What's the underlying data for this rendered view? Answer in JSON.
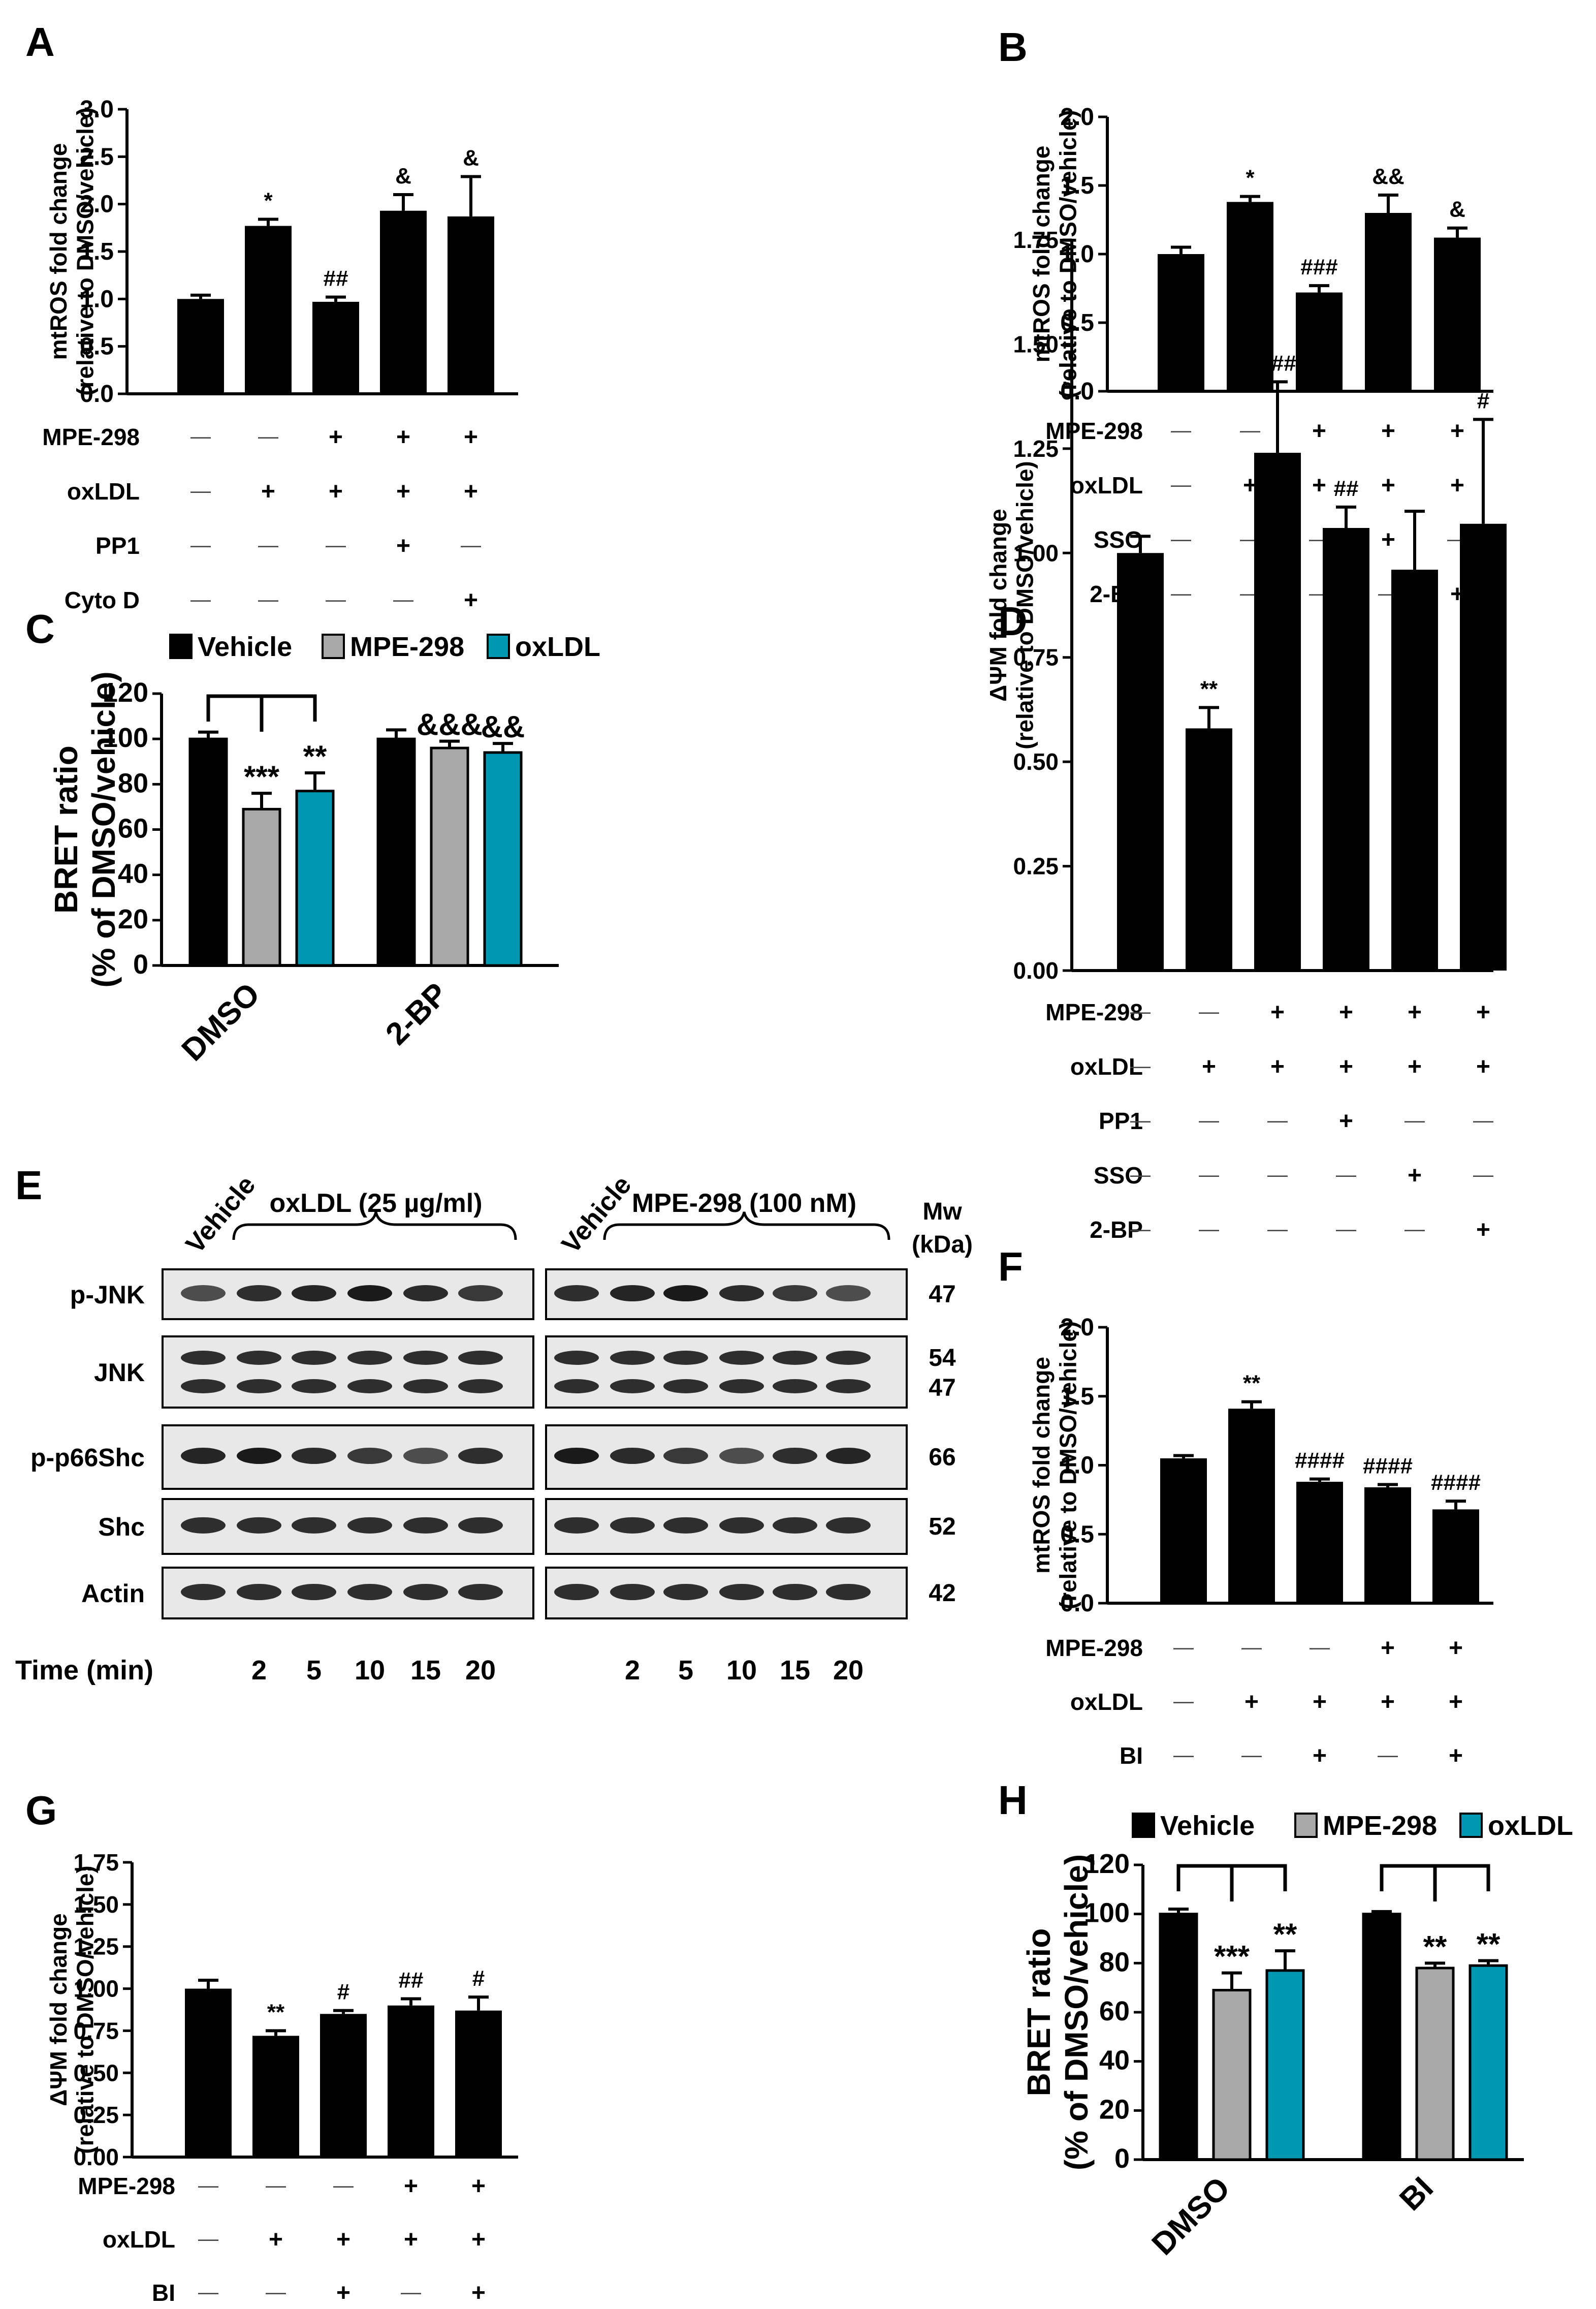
{
  "colors": {
    "bar": "#000000",
    "vehicle": "#000000",
    "mpe": "#a8a8a8",
    "oxldl": "#0097b2",
    "blot_bg": "#e8e8e8",
    "band": "#1a1a1a"
  },
  "panels": {
    "A": {
      "letter": "A"
    },
    "B": {
      "letter": "B"
    },
    "C": {
      "letter": "C"
    },
    "D": {
      "letter": "D"
    },
    "E": {
      "letter": "E"
    },
    "F": {
      "letter": "F"
    },
    "G": {
      "letter": "G"
    },
    "H": {
      "letter": "H"
    }
  },
  "chart_data": [
    {
      "id": "A",
      "type": "bar",
      "ylabel_lines": [
        "mtROS fold change",
        "(relative to DMSO/vehicle)"
      ],
      "ylim": [
        0,
        3.0
      ],
      "yticks": [
        "0.0",
        "0.5",
        "1.0",
        "1.5",
        "2.0",
        "2.5",
        "3.0"
      ],
      "values": [
        1.0,
        1.77,
        0.97,
        1.93,
        1.87
      ],
      "errors": [
        0.04,
        0.07,
        0.05,
        0.17,
        0.42
      ],
      "annotations": [
        "",
        "*",
        "##",
        "&",
        "&"
      ],
      "conditions": [
        {
          "name": "MPE-298",
          "signs": [
            "—",
            "—",
            "+",
            "+",
            "+"
          ]
        },
        {
          "name": "oxLDL",
          "signs": [
            "—",
            "+",
            "+",
            "+",
            "+"
          ]
        },
        {
          "name": "PP1",
          "signs": [
            "—",
            "—",
            "—",
            "+",
            "—"
          ]
        },
        {
          "name": "Cyto D",
          "signs": [
            "—",
            "—",
            "—",
            "—",
            "+"
          ]
        }
      ]
    },
    {
      "id": "B",
      "type": "bar",
      "ylabel_lines": [
        "mtROS fold change",
        "(relative to DMSO/vehicle)"
      ],
      "ylim": [
        0,
        2.0
      ],
      "yticks": [
        "0.0",
        "0.5",
        "1.0",
        "1.5",
        "2.0"
      ],
      "values": [
        1.0,
        1.38,
        0.72,
        1.3,
        1.12
      ],
      "errors": [
        0.05,
        0.04,
        0.05,
        0.13,
        0.07
      ],
      "annotations": [
        "",
        "*",
        "###",
        "&&",
        "&"
      ],
      "conditions": [
        {
          "name": "MPE-298",
          "signs": [
            "—",
            "—",
            "+",
            "+",
            "+"
          ]
        },
        {
          "name": "oxLDL",
          "signs": [
            "—",
            "+",
            "+",
            "+",
            "+"
          ]
        },
        {
          "name": "SSO",
          "signs": [
            "—",
            "—",
            "—",
            "+",
            "—"
          ]
        },
        {
          "name": "2-BP",
          "signs": [
            "—",
            "—",
            "—",
            "—",
            "+"
          ]
        }
      ]
    },
    {
      "id": "C",
      "type": "bar",
      "ylabel_lines": [
        "BRET ratio",
        "(% of DMSO/vehicle)"
      ],
      "ylim": [
        0,
        120
      ],
      "yticks": [
        "0",
        "20",
        "40",
        "60",
        "80",
        "100",
        "120"
      ],
      "legend": [
        "Vehicle",
        "MPE-298",
        "oxLDL"
      ],
      "groups": [
        "DMSO",
        "2-BP"
      ],
      "series": [
        {
          "name": "Vehicle",
          "values": [
            100,
            100
          ],
          "errors": [
            3,
            4
          ]
        },
        {
          "name": "MPE-298",
          "values": [
            69,
            96
          ],
          "errors": [
            7,
            3
          ]
        },
        {
          "name": "oxLDL",
          "values": [
            77,
            94
          ],
          "errors": [
            8,
            4
          ]
        }
      ],
      "annotations": [
        [
          "",
          "***",
          "**"
        ],
        [
          "",
          "&&&",
          "&&"
        ]
      ]
    },
    {
      "id": "D",
      "type": "bar",
      "ylabel_lines": [
        "ΔΨM fold change",
        "(relative to DMSO/vehicle)"
      ],
      "ylim": [
        0,
        1.75
      ],
      "yticks": [
        "0.00",
        "0.25",
        "0.50",
        "0.75",
        "1.00",
        "1.25",
        "1.50",
        "1.75"
      ],
      "values": [
        1.0,
        0.58,
        1.24,
        1.06,
        0.96,
        1.07
      ],
      "errors": [
        0.04,
        0.05,
        0.17,
        0.05,
        0.14,
        0.25
      ],
      "annotations": [
        "",
        "**",
        "###",
        "##",
        "",
        "#"
      ],
      "conditions": [
        {
          "name": "MPE-298",
          "signs": [
            "—",
            "—",
            "+",
            "+",
            "+",
            "+"
          ]
        },
        {
          "name": "oxLDL",
          "signs": [
            "—",
            "+",
            "+",
            "+",
            "+",
            "+"
          ]
        },
        {
          "name": "PP1",
          "signs": [
            "—",
            "—",
            "—",
            "+",
            "—",
            "—"
          ]
        },
        {
          "name": "SSO",
          "signs": [
            "—",
            "—",
            "—",
            "—",
            "+",
            "—"
          ]
        },
        {
          "name": "2-BP",
          "signs": [
            "—",
            "—",
            "—",
            "—",
            "—",
            "+"
          ]
        }
      ]
    },
    {
      "id": "F",
      "type": "bar",
      "ylabel_lines": [
        "mtROS fold change",
        "(relative to DMSO/vehicle)"
      ],
      "ylim": [
        0,
        2.0
      ],
      "yticks": [
        "0.0",
        "0.5",
        "1.0",
        "1.5",
        "2.0"
      ],
      "values": [
        1.05,
        1.41,
        0.88,
        0.84,
        0.68
      ],
      "errors": [
        0.02,
        0.05,
        0.02,
        0.02,
        0.06
      ],
      "annotations": [
        "",
        "**",
        "####",
        "####",
        "####"
      ],
      "conditions": [
        {
          "name": "MPE-298",
          "signs": [
            "—",
            "—",
            "—",
            "+",
            "+"
          ]
        },
        {
          "name": "oxLDL",
          "signs": [
            "—",
            "+",
            "+",
            "+",
            "+"
          ]
        },
        {
          "name": "BI",
          "signs": [
            "—",
            "—",
            "+",
            "—",
            "+"
          ]
        }
      ]
    },
    {
      "id": "G",
      "type": "bar",
      "ylabel_lines": [
        "ΔΨM fold change",
        "(relative to DMSO/vehicle)"
      ],
      "ylim": [
        0,
        1.75
      ],
      "yticks": [
        "0.00",
        "0.25",
        "0.50",
        "0.75",
        "1.00",
        "1.25",
        "1.50",
        "1.75"
      ],
      "values": [
        1.0,
        0.72,
        0.85,
        0.9,
        0.87
      ],
      "errors": [
        0.05,
        0.03,
        0.02,
        0.04,
        0.08
      ],
      "annotations": [
        "",
        "**",
        "#",
        "##",
        "#"
      ],
      "conditions": [
        {
          "name": "MPE-298",
          "signs": [
            "—",
            "—",
            "—",
            "+",
            "+"
          ]
        },
        {
          "name": "oxLDL",
          "signs": [
            "—",
            "+",
            "+",
            "+",
            "+"
          ]
        },
        {
          "name": "BI",
          "signs": [
            "—",
            "—",
            "+",
            "—",
            "+"
          ]
        }
      ]
    },
    {
      "id": "H",
      "type": "bar",
      "ylabel_lines": [
        "BRET ratio",
        "(% of DMSO/vehicle)"
      ],
      "ylim": [
        0,
        120
      ],
      "yticks": [
        "0",
        "20",
        "40",
        "60",
        "80",
        "100",
        "120"
      ],
      "legend": [
        "Vehicle",
        "MPE-298",
        "oxLDL"
      ],
      "groups": [
        "DMSO",
        "BI"
      ],
      "series": [
        {
          "name": "Vehicle",
          "values": [
            100,
            100
          ],
          "errors": [
            2,
            1
          ]
        },
        {
          "name": "MPE-298",
          "values": [
            69,
            78
          ],
          "errors": [
            7,
            2
          ]
        },
        {
          "name": "oxLDL",
          "values": [
            77,
            79
          ],
          "errors": [
            8,
            2
          ]
        }
      ],
      "annotations": [
        [
          "",
          "***",
          "**"
        ],
        [
          "",
          "**",
          "**"
        ]
      ]
    }
  ],
  "western_blot": {
    "left_header": {
      "vehicle": "Vehicle",
      "treatment": "oxLDL (25 µg/ml)"
    },
    "right_header": {
      "vehicle": "Vehicle",
      "treatment": "MPE-298 (100 nM)"
    },
    "mw_header": [
      "Mw",
      "(kDa)"
    ],
    "rows": [
      {
        "name": "p-JNK",
        "mw": [
          "47"
        ]
      },
      {
        "name": "JNK",
        "mw": [
          "54",
          "47"
        ]
      },
      {
        "name": "p-p66Shc",
        "mw": [
          "66"
        ]
      },
      {
        "name": "Shc",
        "mw": [
          "52"
        ]
      },
      {
        "name": "Actin",
        "mw": [
          "42"
        ]
      }
    ],
    "time_label": "Time (min)",
    "times": [
      "2",
      "5",
      "10",
      "15",
      "20"
    ]
  }
}
